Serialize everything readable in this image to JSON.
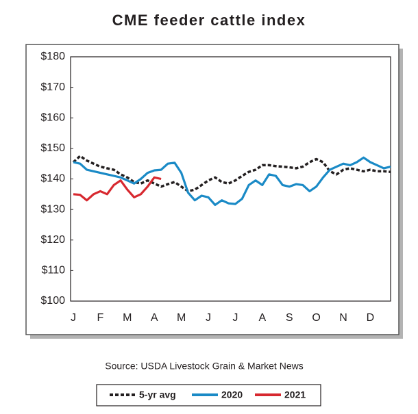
{
  "chart_data": {
    "type": "line",
    "title": "CME feeder cattle index",
    "source": "Source: USDA Livestock Grain & Market News",
    "categories": [
      "J",
      null,
      null,
      null,
      "F",
      null,
      null,
      null,
      "M",
      null,
      null,
      null,
      "A",
      null,
      null,
      null,
      "M",
      null,
      null,
      null,
      "J",
      null,
      null,
      null,
      "J",
      null,
      null,
      null,
      "A",
      null,
      null,
      null,
      "S",
      null,
      null,
      null,
      "O",
      null,
      null,
      null,
      "N",
      null,
      null,
      null,
      "D",
      null,
      null,
      null
    ],
    "series": [
      {
        "name": "5-yr avg",
        "color": "#231f20",
        "dashed": true,
        "values": [
          145.5,
          147.5,
          146,
          145,
          144,
          143.5,
          143,
          141.5,
          140.5,
          139,
          138.5,
          139.5,
          138.5,
          137.5,
          138.3,
          139,
          137.5,
          136,
          136.5,
          138,
          139.5,
          140.5,
          139,
          138.5,
          139.5,
          141,
          142.3,
          143,
          144.5,
          144.5,
          144.2,
          144,
          143.8,
          143.5,
          144,
          145.5,
          146.5,
          145.5,
          142.5,
          141.5,
          143,
          143.5,
          143,
          142.5,
          143,
          142.5,
          142.5,
          142.3
        ]
      },
      {
        "name": "2020",
        "color": "#1a8ac6",
        "dashed": false,
        "values": [
          145.5,
          145,
          143,
          142.5,
          142,
          141.5,
          141,
          140.5,
          139.5,
          138.5,
          140,
          142,
          142.8,
          143,
          145,
          145.3,
          142,
          135.5,
          133,
          134.5,
          134,
          131.5,
          133,
          132,
          131.8,
          133.5,
          138,
          139.5,
          138,
          141.5,
          141,
          138,
          137.5,
          138.3,
          138,
          136,
          137.5,
          140.5,
          143,
          144,
          145,
          144.5,
          145.5,
          147,
          145.5,
          144.5,
          143.5,
          144
        ]
      },
      {
        "name": "2021",
        "color": "#d7282f",
        "dashed": false,
        "values": [
          135,
          134.8,
          133,
          135,
          136,
          135,
          138,
          139.5,
          136.5,
          134,
          135,
          137.5,
          140.5,
          140,
          null,
          null,
          null,
          null,
          null,
          null,
          null,
          null,
          null,
          null,
          null,
          null,
          null,
          null,
          null,
          null,
          null,
          null,
          null,
          null,
          null,
          null,
          null,
          null,
          null,
          null,
          null,
          null,
          null,
          null,
          null,
          null,
          null,
          null
        ]
      }
    ],
    "ylim": [
      100,
      180
    ],
    "yticks": [
      {
        "value": 100,
        "label": "$100"
      },
      {
        "value": 110,
        "label": "$110"
      },
      {
        "value": 120,
        "label": "$120"
      },
      {
        "value": 130,
        "label": "$130"
      },
      {
        "value": 140,
        "label": "$140"
      },
      {
        "value": 150,
        "label": "$150"
      },
      {
        "value": 160,
        "label": "$160"
      },
      {
        "value": 170,
        "label": "$170"
      },
      {
        "value": 180,
        "label": "$180"
      }
    ],
    "grid": false,
    "legend": "bottom"
  }
}
